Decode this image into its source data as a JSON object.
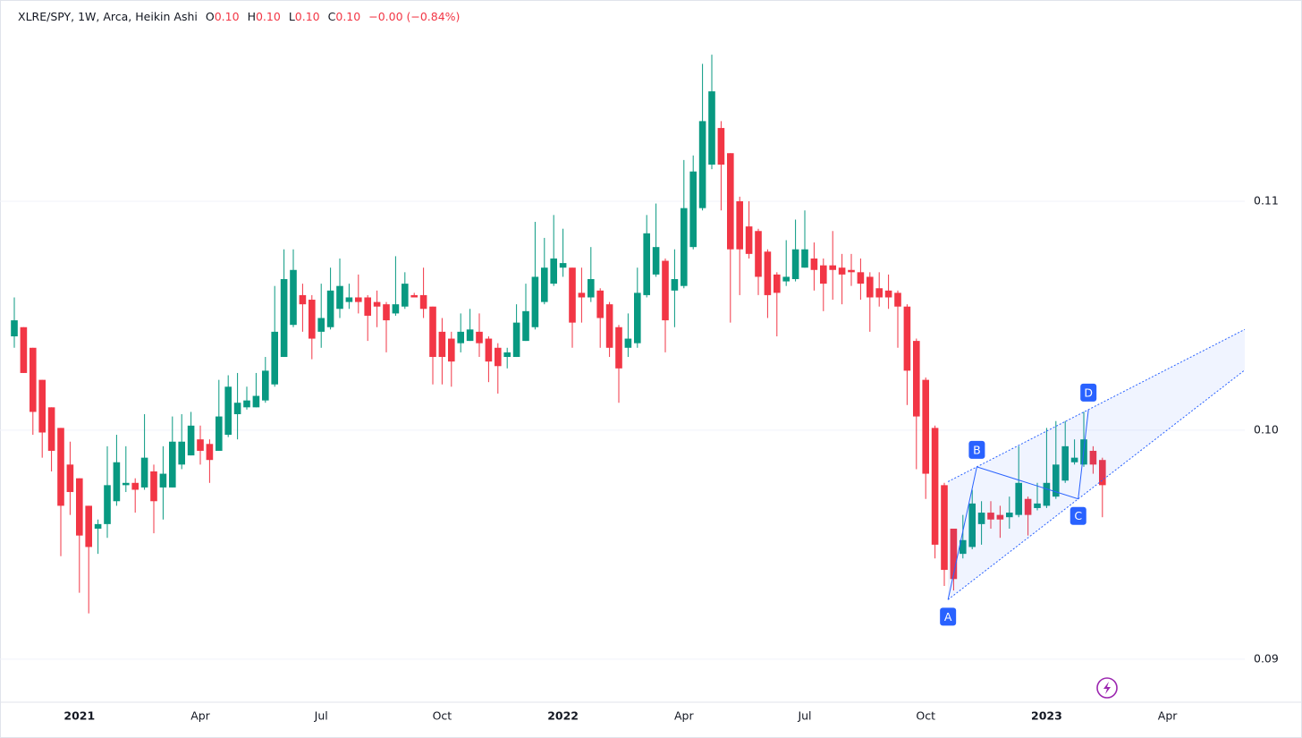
{
  "header": {
    "symbol": "XLRE/SPY, 1W, Arca, Heikin Ashi",
    "o_key": "O",
    "o": "0.10",
    "h_key": "H",
    "h": "0.10",
    "l_key": "L",
    "l": "0.10",
    "c_key": "C",
    "c": "0.10",
    "change": "−0.00 (−0.84%)"
  },
  "chart_data": {
    "type": "candlestick",
    "categories": [
      null,
      null,
      null,
      null,
      null,
      null,
      null,
      "2021",
      null,
      null,
      null,
      null,
      null,
      null,
      null,
      null,
      null,
      null,
      null,
      null,
      "Apr",
      null,
      null,
      null,
      null,
      null,
      null,
      null,
      null,
      null,
      null,
      null,
      null,
      "Jul",
      null,
      null,
      null,
      null,
      null,
      null,
      null,
      null,
      null,
      null,
      null,
      null,
      "Oct",
      null,
      null,
      null,
      null,
      null,
      null,
      null,
      null,
      null,
      null,
      null,
      null,
      "2022",
      null,
      null,
      null,
      null,
      null,
      null,
      null,
      null,
      null,
      null,
      null,
      null,
      "Apr",
      null,
      null,
      null,
      null,
      null,
      null,
      null,
      null,
      null,
      null,
      null,
      null,
      "Jul",
      null,
      null,
      null,
      null,
      null,
      null,
      null,
      null,
      null,
      null,
      null,
      null,
      "Oct",
      null,
      null,
      null,
      null,
      null,
      null,
      null,
      null,
      null,
      null,
      null,
      null,
      "2023",
      null,
      null,
      null,
      null,
      null,
      null,
      null,
      null,
      null,
      null,
      null,
      null,
      "Apr"
    ],
    "open": [
      0.1041,
      0.1045,
      0.1036,
      0.1022,
      0.101,
      0.1001,
      0.0985,
      0.0979,
      0.0967,
      0.0957,
      0.0959,
      0.0969,
      0.0976,
      0.0977,
      0.0975,
      0.0982,
      0.0975,
      0.0975,
      0.0985,
      0.0989,
      0.0996,
      0.0994,
      0.0991,
      0.0998,
      0.1007,
      0.101,
      0.101,
      0.1013,
      0.102,
      0.1032,
      0.1046,
      0.1059,
      0.1057,
      0.1043,
      0.1045,
      0.1053,
      0.1056,
      0.1058,
      0.1058,
      0.1056,
      0.1055,
      0.1051,
      0.1054,
      0.1059,
      0.1059,
      0.1054,
      0.1043,
      0.104,
      0.1038,
      0.1039,
      0.1043,
      0.104,
      0.1036,
      0.1032,
      0.1032,
      0.1039,
      0.1045,
      0.1056,
      0.1064,
      0.1071,
      0.1071,
      0.106,
      0.1058,
      0.1061,
      0.1055,
      0.1045,
      0.1036,
      0.1038,
      0.1059,
      0.1068,
      0.1074,
      0.1061,
      0.1063,
      0.108,
      0.1097,
      0.1116,
      0.1132,
      0.1121,
      0.11,
      0.1089,
      0.1087,
      0.1078,
      0.1068,
      0.1065,
      0.1066,
      0.1071,
      0.1075,
      0.1072,
      0.1072,
      0.1071,
      0.107,
      0.1069,
      0.1067,
      0.1062,
      0.1061,
      0.106,
      0.1054,
      0.1039,
      0.1022,
      0.1001,
      0.0976,
      0.0957,
      0.0946,
      0.0949,
      0.0959,
      0.0964,
      0.0963,
      0.0962,
      0.0963,
      0.097,
      0.0966,
      0.0967,
      0.0971,
      0.0978,
      0.0986,
      0.0985,
      0.0991,
      0.0987,
      null,
      null,
      null,
      null,
      null,
      null,
      null
    ],
    "high": [
      0.1058,
      0.1045,
      0.1036,
      0.1022,
      0.101,
      0.1001,
      0.0995,
      0.0979,
      0.0967,
      0.0961,
      0.0993,
      0.0998,
      0.0993,
      0.0979,
      0.1007,
      0.0985,
      0.0993,
      0.1006,
      0.1007,
      0.1008,
      0.1002,
      0.0996,
      0.1022,
      0.1024,
      0.1025,
      0.1019,
      0.1025,
      0.1032,
      0.1063,
      0.1079,
      0.1079,
      0.1064,
      0.1059,
      0.1064,
      0.1071,
      0.1075,
      0.1064,
      0.1068,
      0.1059,
      0.1061,
      0.1056,
      0.1076,
      0.1069,
      0.106,
      0.1071,
      0.1054,
      0.1049,
      0.1043,
      0.1051,
      0.1053,
      0.1051,
      0.1041,
      0.1038,
      0.1036,
      0.1055,
      0.1064,
      0.1091,
      0.1084,
      0.1094,
      0.1088,
      0.1071,
      0.1071,
      0.108,
      0.1062,
      0.1056,
      0.1046,
      0.1051,
      0.1071,
      0.1094,
      0.1099,
      0.1075,
      0.1079,
      0.1118,
      0.112,
      0.116,
      0.1164,
      0.1135,
      0.1121,
      0.1102,
      0.11,
      0.1088,
      0.1079,
      0.1069,
      0.1083,
      0.1092,
      0.1096,
      0.1082,
      0.1075,
      0.1087,
      0.1077,
      0.1077,
      0.1075,
      0.1069,
      0.1069,
      0.1068,
      0.1061,
      0.1055,
      0.104,
      0.1023,
      0.1002,
      0.0977,
      0.0957,
      0.0963,
      0.0974,
      0.0969,
      0.0969,
      0.0967,
      0.0971,
      0.0993,
      0.0971,
      0.0977,
      0.1001,
      0.1004,
      0.1004,
      0.0996,
      0.1008,
      0.0993,
      0.0988,
      null,
      null,
      null,
      null,
      null,
      null,
      null
    ],
    "low": [
      0.1036,
      0.1025,
      0.0998,
      0.0988,
      0.0982,
      0.0945,
      0.0963,
      0.0929,
      0.092,
      0.0946,
      0.0953,
      0.0967,
      0.0973,
      0.0964,
      0.0974,
      0.0955,
      0.0961,
      0.0975,
      0.0983,
      0.0989,
      0.0985,
      0.0977,
      0.0991,
      0.0997,
      0.0996,
      0.1009,
      0.101,
      0.1012,
      0.1019,
      0.1032,
      0.1045,
      0.1043,
      0.1031,
      0.1036,
      0.1044,
      0.1049,
      0.1053,
      0.1051,
      0.1039,
      0.1045,
      0.1034,
      0.105,
      0.1053,
      0.1058,
      0.1049,
      0.102,
      0.102,
      0.1019,
      0.1034,
      0.1039,
      0.1032,
      0.1021,
      0.1016,
      0.1027,
      0.1032,
      0.1039,
      0.1044,
      0.1055,
      0.1063,
      0.1067,
      0.1036,
      0.1047,
      0.1056,
      0.1036,
      0.1032,
      0.1012,
      0.1032,
      0.1036,
      0.1058,
      0.1067,
      0.1034,
      0.1045,
      0.1062,
      0.1079,
      0.1096,
      0.1114,
      0.1096,
      0.1047,
      0.1059,
      0.1075,
      0.1059,
      0.1049,
      0.1041,
      0.1063,
      0.1065,
      0.1071,
      0.1061,
      0.1052,
      0.1057,
      0.1055,
      0.1063,
      0.1057,
      0.1043,
      0.1054,
      0.1053,
      0.1036,
      0.1011,
      0.0983,
      0.097,
      0.0944,
      0.0932,
      0.093,
      0.0944,
      0.0948,
      0.095,
      0.0957,
      0.0953,
      0.0957,
      0.0962,
      0.0954,
      0.0965,
      0.0966,
      0.097,
      0.0977,
      0.0985,
      0.0984,
      0.0981,
      0.0962,
      null,
      null,
      null,
      null,
      null,
      null,
      null
    ],
    "close": [
      0.1048,
      0.1025,
      0.1008,
      0.0999,
      0.0991,
      0.0967,
      0.0973,
      0.0954,
      0.0949,
      0.0959,
      0.0976,
      0.0986,
      0.0977,
      0.0974,
      0.0988,
      0.0969,
      0.0981,
      0.0995,
      0.0995,
      0.1002,
      0.0991,
      0.0987,
      0.1006,
      0.1019,
      0.1012,
      0.1013,
      0.1015,
      0.1026,
      0.1043,
      0.1066,
      0.107,
      0.1055,
      0.104,
      0.1049,
      0.1061,
      0.1063,
      0.1058,
      0.1056,
      0.105,
      0.1054,
      0.1048,
      0.1055,
      0.1064,
      0.1058,
      0.1053,
      0.1032,
      0.1032,
      0.103,
      0.1043,
      0.1044,
      0.1038,
      0.103,
      0.1028,
      0.1034,
      0.1047,
      0.1052,
      0.1067,
      0.1071,
      0.1075,
      0.1073,
      0.1047,
      0.1058,
      0.1066,
      0.1049,
      0.1036,
      0.1027,
      0.104,
      0.106,
      0.1086,
      0.108,
      0.1048,
      0.1066,
      0.1097,
      0.1113,
      0.1135,
      0.1148,
      0.1116,
      0.1079,
      0.1079,
      0.1077,
      0.1067,
      0.1059,
      0.106,
      0.1067,
      0.1079,
      0.1079,
      0.107,
      0.1064,
      0.107,
      0.1068,
      0.1069,
      0.1064,
      0.1058,
      0.1058,
      0.1058,
      0.1054,
      0.1026,
      0.1006,
      0.0981,
      0.095,
      0.0939,
      0.0935,
      0.0952,
      0.0968,
      0.0964,
      0.0961,
      0.0961,
      0.0964,
      0.0977,
      0.0963,
      0.0968,
      0.0977,
      0.0985,
      0.0993,
      0.0988,
      0.0996,
      0.0985,
      0.0976,
      null,
      null,
      null,
      null,
      null,
      null,
      null
    ],
    "up_color": "#089981",
    "down_color": "#f23645",
    "ylim": [
      0.08812,
      0.11879
    ],
    "yticks": [
      0.09,
      {
        "value": 0.1,
        "label": "0.10"
      },
      0.11
    ],
    "grid": true,
    "pattern": {
      "color": "#2962ff",
      "points": [
        {
          "label": "A",
          "x": 100.4,
          "y": 0.0926
        },
        {
          "label": "B",
          "x": 103.5,
          "y": 0.0984
        },
        {
          "label": "C",
          "x": 114.4,
          "y": 0.097
        },
        {
          "label": "D",
          "x": 115.5,
          "y": 0.1009
        }
      ]
    }
  }
}
